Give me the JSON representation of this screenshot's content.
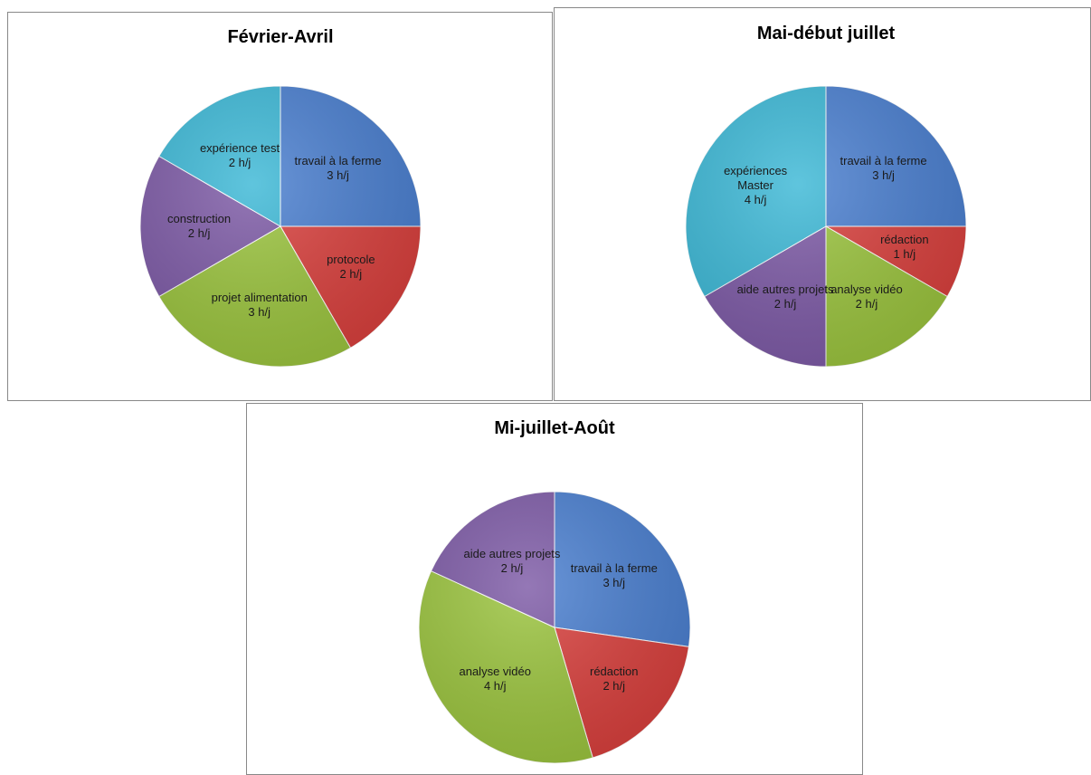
{
  "chart_data": [
    {
      "type": "pie",
      "title": "Février-Avril",
      "categories": [
        "travail à la ferme",
        "protocole",
        "projet alimentation",
        "construction",
        "expérience test"
      ],
      "values": [
        3,
        2,
        3,
        2,
        2
      ],
      "value_labels": [
        "3 h/j",
        "2 h/j",
        "3 h/j",
        "2 h/j",
        "2 h/j"
      ],
      "colors": [
        "#4a7fd0",
        "#d9403d",
        "#9bc43e",
        "#7d5aa6",
        "#3cb8d6"
      ]
    },
    {
      "type": "pie",
      "title": "Mai-début juillet",
      "categories": [
        "travail à la ferme",
        "rédaction",
        "analyse vidéo",
        "aide autres projets",
        "expériences Master"
      ],
      "values": [
        3,
        1,
        2,
        2,
        4
      ],
      "value_labels": [
        "3 h/j",
        "1 h/j",
        "2 h/j",
        "2 h/j",
        "4 h/j"
      ],
      "colors": [
        "#4a7fd0",
        "#d9403d",
        "#9bc43e",
        "#7d5aa6",
        "#3cb8d6"
      ]
    },
    {
      "type": "pie",
      "title": "Mi-juillet-Août",
      "categories": [
        "travail à la ferme",
        "rédaction",
        "analyse vidéo",
        "aide autres projets"
      ],
      "values": [
        3,
        2,
        4,
        2
      ],
      "value_labels": [
        "3 h/j",
        "2 h/j",
        "4 h/j",
        "2 h/j"
      ],
      "colors": [
        "#4a7fd0",
        "#d9403d",
        "#9bc43e",
        "#7d5aa6"
      ]
    }
  ]
}
